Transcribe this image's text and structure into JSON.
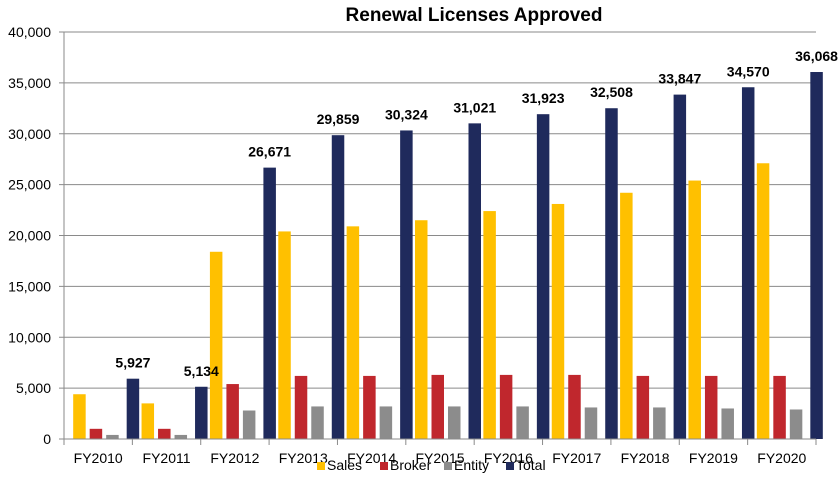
{
  "chart_data": {
    "type": "bar",
    "title": "Renewal Licenses Approved",
    "xlabel": "",
    "ylabel": "",
    "ylim": [
      0,
      40000
    ],
    "yticks": [
      0,
      5000,
      10000,
      15000,
      20000,
      25000,
      30000,
      35000,
      40000
    ],
    "ytick_labels": [
      "0",
      "5,000",
      "10,000",
      "15,000",
      "20,000",
      "25,000",
      "30,000",
      "35,000",
      "40,000"
    ],
    "grid": true,
    "legend_position": "bottom",
    "categories": [
      "FY2010",
      "FY2011",
      "FY2012",
      "FY2013",
      "FY2014",
      "FY2015",
      "FY2016",
      "FY2017",
      "FY2018",
      "FY2019",
      "FY2020"
    ],
    "series": [
      {
        "name": "Sales",
        "color": "#FFC000",
        "values": [
          4400,
          3500,
          18400,
          20400,
          20900,
          21500,
          22400,
          23100,
          24200,
          25400,
          27100
        ]
      },
      {
        "name": "Broker",
        "color": "#C0272D",
        "values": [
          1000,
          1000,
          5400,
          6200,
          6200,
          6300,
          6300,
          6300,
          6200,
          6200,
          6200
        ]
      },
      {
        "name": "Entity",
        "color": "#8C8C8C",
        "values": [
          400,
          400,
          2800,
          3200,
          3200,
          3200,
          3200,
          3100,
          3100,
          3000,
          2900
        ]
      },
      {
        "name": "Total",
        "color": "#1F2A5C",
        "values": [
          5927,
          5134,
          26671,
          29859,
          30324,
          31021,
          31923,
          32508,
          33847,
          34570,
          36068
        ]
      }
    ],
    "data_labels": {
      "series": "Total",
      "labels": [
        "5,927",
        "5,134",
        "26,671",
        "29,859",
        "30,324",
        "31,021",
        "31,923",
        "32,508",
        "33,847",
        "34,570",
        "36,068"
      ]
    }
  }
}
